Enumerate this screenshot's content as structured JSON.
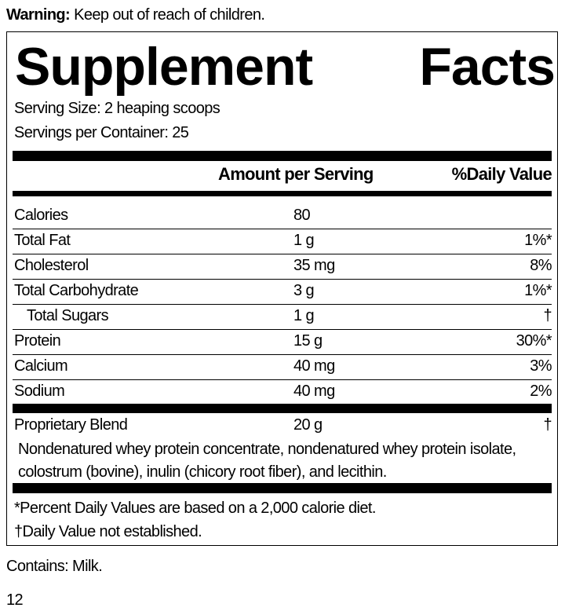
{
  "warning": {
    "label": "Warning:",
    "text": "Keep out of reach of children."
  },
  "title": {
    "word1": "Supplement",
    "word2": "Facts"
  },
  "serving_size": "Serving Size: 2 heaping scoops",
  "servings_per_container": "Servings per Container: 25",
  "header": {
    "amount": "Amount per Serving",
    "daily_value": "%Daily Value"
  },
  "rows": [
    {
      "name": "Calories",
      "amount": "80",
      "dv": ""
    },
    {
      "name": "Total Fat",
      "amount": "1 g",
      "dv": "1%*"
    },
    {
      "name": "Cholesterol",
      "amount": "35 mg",
      "dv": "8%"
    },
    {
      "name": "Total Carbohydrate",
      "amount": "3 g",
      "dv": "1%*"
    },
    {
      "name": "Total Sugars",
      "amount": "1 g",
      "dv": "†"
    },
    {
      "name": "Protein",
      "amount": "15 g",
      "dv": "30%*"
    },
    {
      "name": "Calcium",
      "amount": "40 mg",
      "dv": "3%"
    },
    {
      "name": "Sodium",
      "amount": "40 mg",
      "dv": "2%"
    }
  ],
  "blend": {
    "name": "Proprietary Blend",
    "amount": "20 g",
    "dv": "†",
    "line1": "Nondenatured whey protein concentrate, nondenatured whey protein isolate,",
    "line2": "colostrum (bovine), inulin (chicory root fiber), and lecithin."
  },
  "footnotes": [
    "*Percent Daily Values are based on a 2,000 calorie diet.",
    "†Daily Value not established."
  ],
  "contains": "Contains: Milk.",
  "page_number": "12"
}
